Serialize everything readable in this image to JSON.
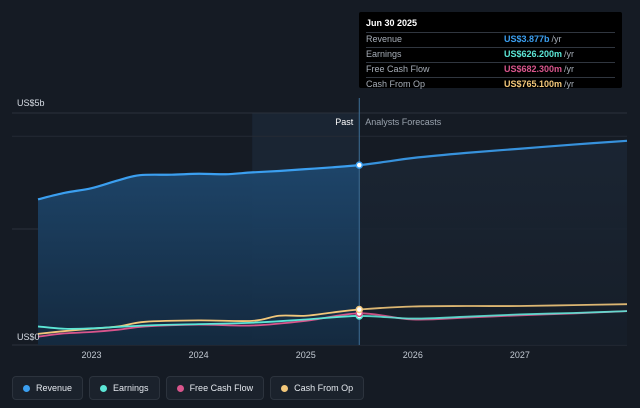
{
  "colors": {
    "revenue": "#3b9ff0",
    "earnings": "#5ce6d6",
    "free_cash_flow": "#d9558c",
    "cash_from_op": "#f2c77a",
    "background": "#151b24",
    "past_fill": "#1b3a59"
  },
  "tooltip": {
    "date": "Jun 30 2025",
    "rows": [
      {
        "label": "Revenue",
        "value": "US$3.877b",
        "unit": "/yr",
        "color": "#3b9ff0"
      },
      {
        "label": "Earnings",
        "value": "US$626.200m",
        "unit": "/yr",
        "color": "#5ce6d6"
      },
      {
        "label": "Free Cash Flow",
        "value": "US$682.300m",
        "unit": "/yr",
        "color": "#d9558c"
      },
      {
        "label": "Cash From Op",
        "value": "US$765.100m",
        "unit": "/yr",
        "color": "#f2c77a"
      }
    ]
  },
  "legend": [
    {
      "label": "Revenue",
      "color": "#3b9ff0"
    },
    {
      "label": "Earnings",
      "color": "#5ce6d6"
    },
    {
      "label": "Free Cash Flow",
      "color": "#d9558c"
    },
    {
      "label": "Cash From Op",
      "color": "#f2c77a"
    }
  ],
  "chart_data": {
    "type": "area",
    "y_top_label": "US$5b",
    "y_bottom_label": "US$0",
    "ylim": [
      0,
      5
    ],
    "xlim": [
      2022.5,
      2028.0
    ],
    "x_ticks": [
      2023,
      2024,
      2025,
      2026,
      2027
    ],
    "x_tick_labels": [
      "2023",
      "2024",
      "2025",
      "2026",
      "2027"
    ],
    "past_label": "Past",
    "forecast_label": "Analysts Forecasts",
    "divider_x": 2025.5,
    "highlight_start_x": 2024.5,
    "grid": true,
    "legend_position": "bottom",
    "series": [
      {
        "name": "Revenue",
        "key": "revenue",
        "filled": true,
        "points": [
          [
            2022.5,
            3.14
          ],
          [
            2022.75,
            3.28
          ],
          [
            2023.0,
            3.38
          ],
          [
            2023.25,
            3.55
          ],
          [
            2023.45,
            3.66
          ],
          [
            2023.75,
            3.67
          ],
          [
            2024.0,
            3.69
          ],
          [
            2024.25,
            3.68
          ],
          [
            2024.5,
            3.72
          ],
          [
            2024.75,
            3.75
          ],
          [
            2025.0,
            3.79
          ],
          [
            2025.25,
            3.83
          ],
          [
            2025.5,
            3.877
          ],
          [
            2025.75,
            3.95
          ],
          [
            2026.0,
            4.03
          ],
          [
            2026.5,
            4.14
          ],
          [
            2027.0,
            4.23
          ],
          [
            2027.5,
            4.32
          ],
          [
            2028.0,
            4.4
          ]
        ]
      },
      {
        "name": "Earnings",
        "key": "earnings",
        "filled": false,
        "points": [
          [
            2022.5,
            0.4
          ],
          [
            2022.75,
            0.35
          ],
          [
            2023.0,
            0.36
          ],
          [
            2023.5,
            0.42
          ],
          [
            2024.0,
            0.45
          ],
          [
            2024.5,
            0.48
          ],
          [
            2025.0,
            0.55
          ],
          [
            2025.5,
            0.6262
          ],
          [
            2026.0,
            0.57
          ],
          [
            2026.5,
            0.61
          ],
          [
            2027.0,
            0.66
          ],
          [
            2027.5,
            0.69
          ],
          [
            2028.0,
            0.73
          ]
        ]
      },
      {
        "name": "Free Cash Flow",
        "key": "free_cash_flow",
        "filled": false,
        "points": [
          [
            2022.5,
            0.18
          ],
          [
            2022.75,
            0.25
          ],
          [
            2023.0,
            0.28
          ],
          [
            2023.25,
            0.33
          ],
          [
            2023.5,
            0.4
          ],
          [
            2024.0,
            0.44
          ],
          [
            2024.5,
            0.42
          ],
          [
            2025.0,
            0.52
          ],
          [
            2025.5,
            0.6823
          ],
          [
            2026.0,
            0.55
          ],
          [
            2026.5,
            0.59
          ],
          [
            2027.0,
            0.64
          ],
          [
            2027.5,
            0.68
          ],
          [
            2028.0,
            0.73
          ]
        ]
      },
      {
        "name": "Cash From Op",
        "key": "cash_from_op",
        "filled": false,
        "points": [
          [
            2022.5,
            0.24
          ],
          [
            2022.75,
            0.3
          ],
          [
            2023.0,
            0.35
          ],
          [
            2023.25,
            0.4
          ],
          [
            2023.5,
            0.5
          ],
          [
            2024.0,
            0.53
          ],
          [
            2024.5,
            0.52
          ],
          [
            2024.75,
            0.63
          ],
          [
            2025.0,
            0.63
          ],
          [
            2025.25,
            0.7
          ],
          [
            2025.5,
            0.7651
          ],
          [
            2026.0,
            0.83
          ],
          [
            2026.5,
            0.84
          ],
          [
            2027.0,
            0.84
          ],
          [
            2027.5,
            0.86
          ],
          [
            2028.0,
            0.88
          ]
        ]
      }
    ]
  }
}
